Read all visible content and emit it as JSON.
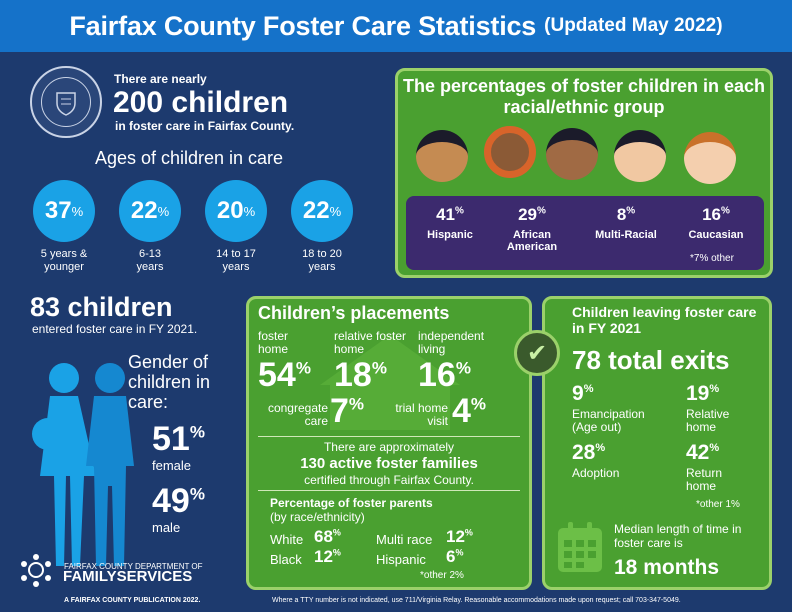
{
  "header": {
    "title": "Fairfax County Foster Care Statistics",
    "updated": "(Updated May 2022)"
  },
  "seal": {
    "text": "COUNTY OF FAIRFAX · VIRGINIA · 1742"
  },
  "intro": {
    "nearly": "There are nearly",
    "count": "200 children",
    "in_care": "in foster care in Fairfax County."
  },
  "ages": {
    "title": "Ages of children in care",
    "groups": [
      {
        "value": "37",
        "unit": "%",
        "label": "5 years & younger"
      },
      {
        "value": "22",
        "unit": "%",
        "label": "6-13 years"
      },
      {
        "value": "20",
        "unit": "%",
        "label": "14 to 17 years"
      },
      {
        "value": "22",
        "unit": "%",
        "label": "18 to 20 years"
      }
    ]
  },
  "race": {
    "title": "The percentages of foster children in each racial/ethnic group",
    "groups": [
      {
        "value": "41",
        "unit": "%",
        "label": "Hispanic"
      },
      {
        "value": "29",
        "unit": "%",
        "label": "African American"
      },
      {
        "value": "8",
        "unit": "%",
        "label": "Multi-Racial"
      },
      {
        "value": "16",
        "unit": "%",
        "label": "Caucasian"
      }
    ],
    "note": "*7% other"
  },
  "entered": {
    "count": "83 children",
    "label": "entered foster care in FY 2021."
  },
  "gender": {
    "title": "Gender of children in care:",
    "female": {
      "value": "51",
      "unit": "%",
      "label": "female"
    },
    "male": {
      "value": "49",
      "unit": "%",
      "label": "male"
    }
  },
  "placements": {
    "title": "Children’s placements",
    "foster_home": {
      "label": "foster home",
      "value": "54",
      "unit": "%"
    },
    "relative": {
      "label": "relative foster home",
      "value": "18",
      "unit": "%"
    },
    "independent": {
      "label": "independent living",
      "value": "16",
      "unit": "%"
    },
    "congregate": {
      "label": "congregate care",
      "value": "7",
      "unit": "%"
    },
    "trial": {
      "label": "trial home visit",
      "value": "4",
      "unit": "%"
    },
    "families_pre": "There are approximately",
    "families_count": "130 active foster families",
    "families_post": "certified through Fairfax County.",
    "parents_title": "Percentage of foster parents",
    "parents_sub": "(by race/ethnicity)",
    "white": {
      "label": "White",
      "value": "68",
      "unit": "%"
    },
    "black": {
      "label": "Black",
      "value": "12",
      "unit": "%"
    },
    "multi": {
      "label": "Multi race",
      "value": "12",
      "unit": "%"
    },
    "hispanic": {
      "label": "Hispanic",
      "value": "6",
      "unit": "%"
    },
    "other": "*other 2%"
  },
  "exits": {
    "title": "Children leaving foster care in FY 2021",
    "total": "78 total exits",
    "emancipation": {
      "value": "9",
      "unit": "%",
      "label": "Emancipation (Age out)"
    },
    "relative": {
      "value": "19",
      "unit": "%",
      "label": "Relative home"
    },
    "adoption": {
      "value": "28",
      "unit": "%",
      "label": "Adoption"
    },
    "return": {
      "value": "42",
      "unit": "%",
      "label": "Return home"
    },
    "other": "*other 1%",
    "median_label": "Median length of time in foster care is",
    "median_value": "18 months"
  },
  "footer": {
    "dept_small": "FAIRFAX COUNTY DEPARTMENT OF",
    "dept_big": "FAMILYSERVICES",
    "publication": "A FAIRFAX COUNTY PUBLICATION 2022.",
    "tty": "Where a TTY number is not indicated, use 711/Virginia Relay. Reasonable accommodations made upon request; call 703-347-5049."
  },
  "colors": {
    "background": "#1d3a6e",
    "title_bar": "#1572c9",
    "circle": "#1aa2e6",
    "green_panel": "#4aa030",
    "purple_panel": "#3c2a6e"
  }
}
